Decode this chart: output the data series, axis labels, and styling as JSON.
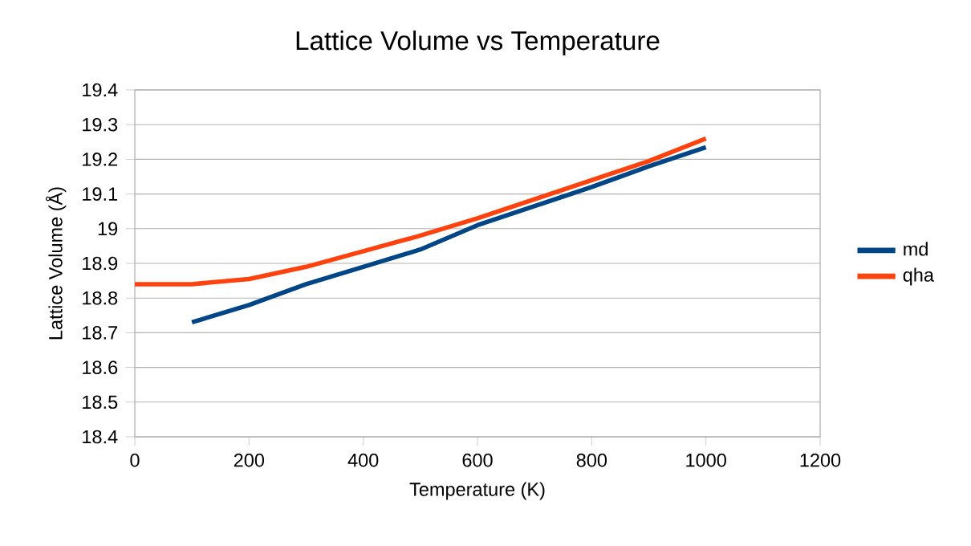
{
  "chart_data": {
    "type": "line",
    "title": "Lattice Volume vs Temperature",
    "xlabel": "Temperature (K)",
    "ylabel": "Lattice Volume (Å)",
    "series": [
      {
        "name": "md",
        "color": "#004586",
        "x": [
          100,
          200,
          300,
          400,
          500,
          600,
          700,
          800,
          900,
          1000
        ],
        "values": [
          18.73,
          18.78,
          18.84,
          18.89,
          18.94,
          19.01,
          19.065,
          19.12,
          19.18,
          19.235
        ]
      },
      {
        "name": "qha",
        "color": "#ff420e",
        "x": [
          0,
          100,
          200,
          300,
          400,
          500,
          600,
          700,
          800,
          900,
          1000
        ],
        "values": [
          18.84,
          18.84,
          18.855,
          18.89,
          18.935,
          18.98,
          19.03,
          19.085,
          19.14,
          19.195,
          19.26
        ]
      }
    ],
    "xlim": [
      0,
      1200
    ],
    "xticks": [
      0,
      200,
      400,
      600,
      800,
      1000,
      1200
    ],
    "ylim": [
      18.4,
      19.4
    ],
    "yticks": [
      18.4,
      18.5,
      18.6,
      18.7,
      18.8,
      18.9,
      19,
      19.1,
      19.2,
      19.3,
      19.4
    ],
    "grid": "y",
    "legend": "right",
    "marker": "none",
    "line_style": "solid"
  }
}
